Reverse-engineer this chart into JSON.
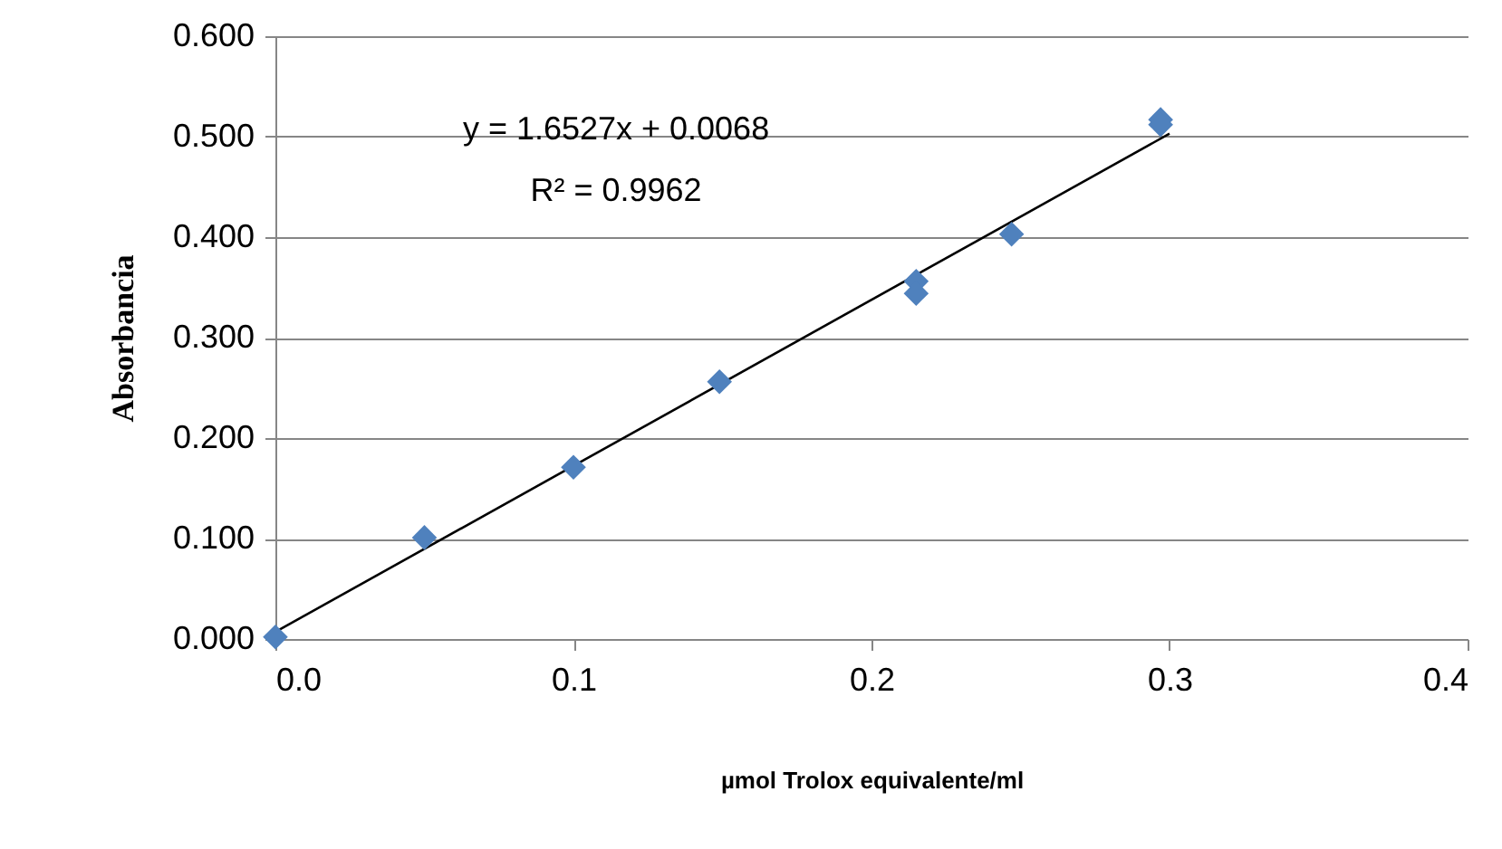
{
  "chart_data": {
    "type": "scatter",
    "xlabel": "µmol Trolox equivalente/ml",
    "ylabel": "Absorbancia",
    "xlim": [
      0,
      0.4
    ],
    "xticks": [
      {
        "value": 0,
        "label": "0.0"
      },
      0.1,
      0.2,
      0.3,
      0.4
    ],
    "ylim": [
      0,
      0.6
    ],
    "yticks": [
      {
        "value": 0,
        "label": "0.000"
      },
      {
        "value": 0.1,
        "label": "0.100"
      },
      {
        "value": 0.2,
        "label": "0.200"
      },
      {
        "value": 0.3,
        "label": "0.300"
      },
      {
        "value": 0.4,
        "label": "0.400"
      },
      {
        "value": 0.5,
        "label": "0.500"
      },
      {
        "value": 0.6,
        "label": "0.600"
      }
    ],
    "grid": "y",
    "marker": "diamond",
    "annotations": [
      "y = 1.6527x + 0.0068",
      "R² = 0.9962"
    ],
    "series": [
      {
        "color": "#4f81bd",
        "x": [
          0,
          0.05,
          0.1,
          0.149,
          0.215,
          0.215,
          0.247,
          0.297,
          0.297
        ],
        "values": [
          0.002,
          0.101,
          0.171,
          0.256,
          0.356,
          0.344,
          0.403,
          0.517,
          0.512
        ]
      },
      {
        "type": "line",
        "color": "#000000",
        "x": [
          0,
          0.3
        ],
        "values": [
          0.007,
          0.503
        ],
        "marker": "none"
      }
    ]
  }
}
